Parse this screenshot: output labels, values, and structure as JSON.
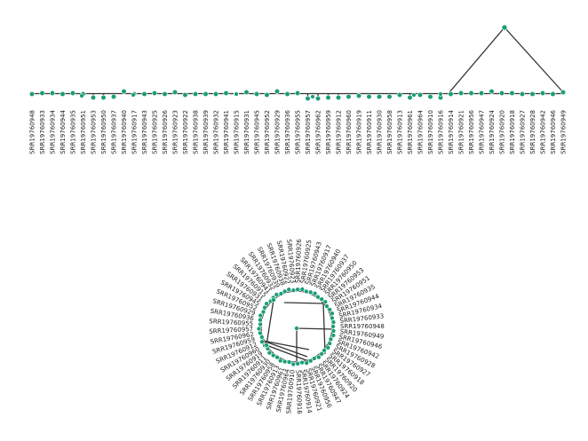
{
  "colors": {
    "node": "#1b9e77",
    "branch": "#333333",
    "background": "#ffffff"
  },
  "tips": [
    "SRR19760948",
    "SRR19760933",
    "SRR19760934",
    "SRR19760944",
    "SRR19760935",
    "SRR19760951",
    "SRR19760953",
    "SRR19760950",
    "SRR19760937",
    "SRR19760940",
    "SRR19760917",
    "SRR19760943",
    "SRR19760925",
    "SRR19760926",
    "SRR19760923",
    "SRR19760922",
    "SRR19760938",
    "SRR19760939",
    "SRR19760932",
    "SRR19760941",
    "SRR19760915",
    "SRR19760931",
    "SRR19760945",
    "SRR19760952",
    "SRR19760929",
    "SRR19760936",
    "SRR19760955",
    "SRR19760957",
    "SRR19760962",
    "SRR19760959",
    "SRR19760912",
    "SRR19760960",
    "SRR19760919",
    "SRR19760911",
    "SRR19760930",
    "SRR19760958",
    "SRR19760913",
    "SRR19760961",
    "SRR19760964",
    "SRR19760910",
    "SRR19760916",
    "SRR19760914",
    "SRR19760921",
    "SRR19760956",
    "SRR19760947",
    "SRR19760924",
    "SRR19760920",
    "SRR19760918",
    "SRR19760927",
    "SRR19760928",
    "SRR19760942",
    "SRR19760946",
    "SRR19760949"
  ],
  "circular_order": [
    "SRR19760948",
    "SRR19760949",
    "SRR19760946",
    "SRR19760942",
    "SRR19760928",
    "SRR19760927",
    "SRR19760918",
    "SRR19760920",
    "SRR19760924",
    "SRR19760947",
    "SRR19760956",
    "SRR19760921",
    "SRR19760914",
    "SRR19760916",
    "SRR19760910",
    "SRR19760964",
    "SRR19760961",
    "SRR19760913",
    "SRR19760958",
    "SRR19760930",
    "SRR19760911",
    "SRR19760919",
    "SRR19760960",
    "SRR19760912",
    "SRR19760959",
    "SRR19760962",
    "SRR19760957",
    "SRR19760955",
    "SRR19760936",
    "SRR19760929",
    "SRR19760952",
    "SRR19760945",
    "SRR19760931",
    "SRR19760915",
    "SRR19760941",
    "SRR19760932",
    "SRR19760939",
    "SRR19760938",
    "SRR19760922",
    "SRR19760923",
    "SRR19760926",
    "SRR19760925",
    "SRR19760943",
    "SRR19760917",
    "SRR19760940",
    "SRR19760937",
    "SRR19760950",
    "SRR19760953",
    "SRR19760951",
    "SRR19760935",
    "SRR19760944",
    "SRR19760934",
    "SRR19760933"
  ]
}
